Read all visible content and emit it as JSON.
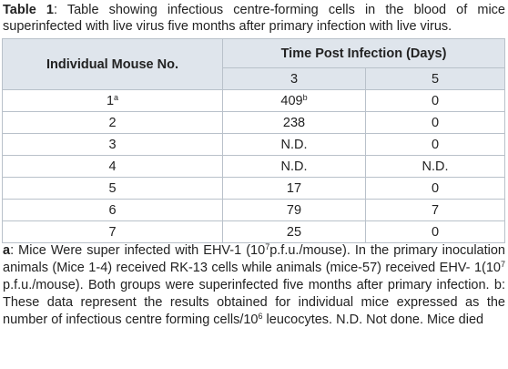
{
  "caption": {
    "label": "Table 1",
    "text": ": Table showing infectious centre-forming cells in the blood of mice superinfected with live virus five months after primary infection with live virus."
  },
  "table": {
    "header": {
      "mouse": "Individual Mouse No.",
      "time": "Time Post Infection (Days)",
      "days": [
        3,
        5
      ]
    },
    "rows": [
      [
        {
          "text": 1,
          "sup": "a"
        },
        {
          "text": 409,
          "sup": "b"
        },
        {
          "text": 0
        }
      ],
      [
        {
          "text": 2
        },
        {
          "text": 238
        },
        {
          "text": 0
        }
      ],
      [
        {
          "text": 3
        },
        {
          "text": "N.D."
        },
        {
          "text": 0
        }
      ],
      [
        {
          "text": 4
        },
        {
          "text": "N.D."
        },
        {
          "text": "N.D."
        }
      ],
      [
        {
          "text": 5
        },
        {
          "text": 17
        },
        {
          "text": 0
        }
      ],
      [
        {
          "text": 6
        },
        {
          "text": 79
        },
        {
          "text": 7
        }
      ],
      [
        {
          "text": 7
        },
        {
          "text": 25
        },
        {
          "text": 0
        }
      ]
    ]
  },
  "footnote": [
    {
      "text": "a",
      "bold": true
    },
    {
      "text": ": Mice Were super infected with EHV-1 (10"
    },
    {
      "text": "7",
      "sup": true
    },
    {
      "text": "p.f.u./mouse). In the primary inoculation animals (Mice 1-4) received RK-13 cells while animals (mice-57) received EHV- 1(10"
    },
    {
      "text": "7",
      "sup": true
    },
    {
      "text": " p.f.u./mouse). Both groups were superinfected five months after primary infection. b: These data represent the results obtained for individual mice expressed as the number of infectious centre forming cells/10"
    },
    {
      "text": "6",
      "sup": true
    },
    {
      "text": " leucocytes. N.D. Not done. Mice died"
    }
  ]
}
